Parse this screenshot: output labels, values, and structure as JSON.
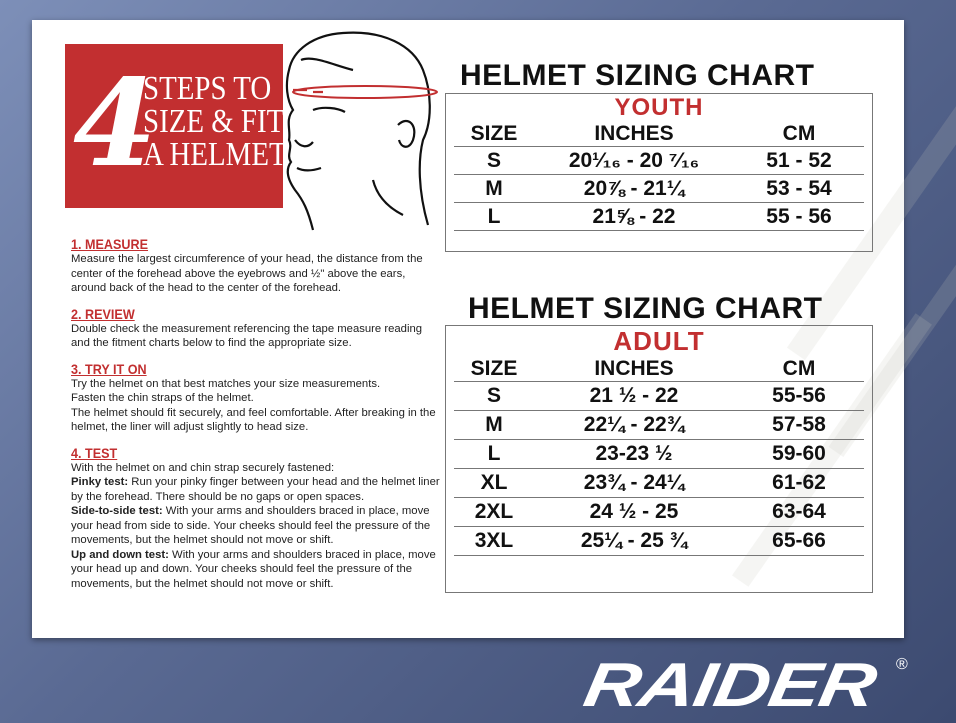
{
  "header_box": {
    "number": "4",
    "text_lines": [
      "STEPS TO",
      "SIZE & FIT",
      "A HELMET"
    ],
    "color": "#c22f30"
  },
  "steps": [
    {
      "title": "1. MEASURE",
      "lines": [
        {
          "text": "Measure the largest circumference of your head, the distance from the center of the forehead above the eyebrows and ½\" above the ears, around back of the head to the center of the forehead."
        }
      ]
    },
    {
      "title": "2. REVIEW",
      "lines": [
        {
          "text": "Double check the measurement referencing the tape measure reading and the fitment charts below to find the appropriate size."
        }
      ]
    },
    {
      "title": "3. TRY IT ON",
      "lines": [
        {
          "text": "Try the helmet on that best matches your size measurements."
        },
        {
          "text": "Fasten the chin straps of the helmet."
        },
        {
          "text": "The helmet should fit securely, and feel comfortable. After breaking in the helmet, the liner will adjust slightly to head size."
        }
      ]
    },
    {
      "title": "4. TEST",
      "lines": [
        {
          "text": "With the helmet on and chin strap securely fastened:"
        },
        {
          "bold": "Pinky test:",
          "text": " Run your pinky finger between your head and the helmet liner by the forehead. There should be no gaps or open spaces."
        },
        {
          "bold": "Side-to-side test:",
          "text": " With your arms and shoulders braced in place, move your head from side to side. Your cheeks should feel the pressure of the movements, but the helmet should not move or shift."
        },
        {
          "bold": "Up and down test:",
          "text": " With your arms and shoulders braced in place, move your head up and down. Your cheeks should feel the pressure of the movements, but the helmet should not move or shift."
        }
      ]
    }
  ],
  "youth_chart": {
    "title": "HELMET SIZING CHART",
    "subtitle": "YOUTH",
    "headers": [
      "SIZE",
      "INCHES",
      "CM"
    ],
    "rows": [
      [
        "S",
        "20¹⁄₁₆ - 20 ⁷⁄₁₆",
        "51 - 52"
      ],
      [
        "M",
        "20⅞ - 21¼",
        "53 - 54"
      ],
      [
        "L",
        "21⅝ - 22",
        "55 - 56"
      ]
    ]
  },
  "adult_chart": {
    "title": "HELMET SIZING CHART",
    "subtitle": "ADULT",
    "headers": [
      "SIZE",
      "INCHES",
      "CM"
    ],
    "rows": [
      [
        "S",
        "21 ½ - 22",
        "55-56"
      ],
      [
        "M",
        "22¼ - 22¾",
        "57-58"
      ],
      [
        "L",
        "23-23 ½",
        "59-60"
      ],
      [
        "XL",
        "23¾ - 24¼",
        "61-62"
      ],
      [
        "2XL",
        "24 ½ - 25",
        "63-64"
      ],
      [
        "3XL",
        "25¼ - 25 ¾",
        "65-66"
      ]
    ]
  },
  "brand": {
    "logo": "RAIDER",
    "registered": "®"
  }
}
